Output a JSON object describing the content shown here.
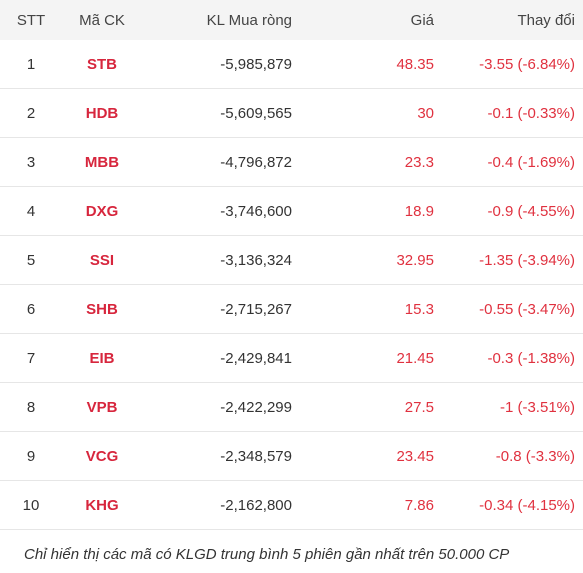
{
  "header": {
    "stt": "STT",
    "code": "Mã CK",
    "net_buy": "KL Mua ròng",
    "price": "Giá",
    "change": "Thay đổi"
  },
  "rows": [
    {
      "stt": "1",
      "code": "STB",
      "net_buy": "-5,985,879",
      "price": "48.35",
      "change": "-3.55 (-6.84%)"
    },
    {
      "stt": "2",
      "code": "HDB",
      "net_buy": "-5,609,565",
      "price": "30",
      "change": "-0.1 (-0.33%)"
    },
    {
      "stt": "3",
      "code": "MBB",
      "net_buy": "-4,796,872",
      "price": "23.3",
      "change": "-0.4 (-1.69%)"
    },
    {
      "stt": "4",
      "code": "DXG",
      "net_buy": "-3,746,600",
      "price": "18.9",
      "change": "-0.9 (-4.55%)"
    },
    {
      "stt": "5",
      "code": "SSI",
      "net_buy": "-3,136,324",
      "price": "32.95",
      "change": "-1.35 (-3.94%)"
    },
    {
      "stt": "6",
      "code": "SHB",
      "net_buy": "-2,715,267",
      "price": "15.3",
      "change": "-0.55 (-3.47%)"
    },
    {
      "stt": "7",
      "code": "EIB",
      "net_buy": "-2,429,841",
      "price": "21.45",
      "change": "-0.3 (-1.38%)"
    },
    {
      "stt": "8",
      "code": "VPB",
      "net_buy": "-2,422,299",
      "price": "27.5",
      "change": "-1 (-3.51%)"
    },
    {
      "stt": "9",
      "code": "VCG",
      "net_buy": "-2,348,579",
      "price": "23.45",
      "change": "-0.8 (-3.3%)"
    },
    {
      "stt": "10",
      "code": "KHG",
      "net_buy": "-2,162,800",
      "price": "7.86",
      "change": "-0.34 (-4.15%)"
    }
  ],
  "footnote": "Chỉ hiển thị các mã có KLGD trung bình 5 phiên gần nhất trên 50.000 CP",
  "colors": {
    "negative": "#e0313f",
    "code": "#d7263d"
  }
}
